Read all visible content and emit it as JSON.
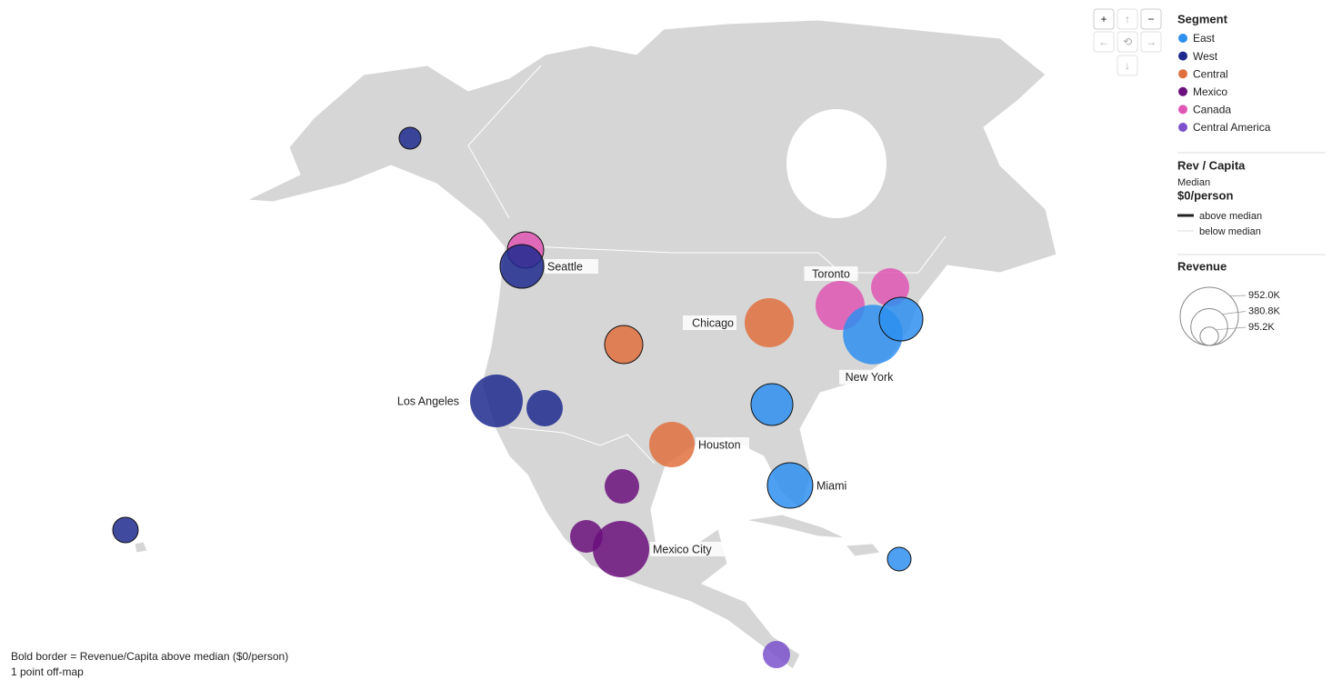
{
  "controls": [
    "+",
    "↑",
    "−",
    "←",
    "⟲",
    "→",
    "↓"
  ],
  "legend": {
    "segment_title": "Segment",
    "segments": [
      {
        "name": "East",
        "color": "#2e8ff0"
      },
      {
        "name": "West",
        "color": "#1f2a8e"
      },
      {
        "name": "Central",
        "color": "#e0703e"
      },
      {
        "name": "Mexico",
        "color": "#6b0f7c"
      },
      {
        "name": "Canada",
        "color": "#e056b4"
      },
      {
        "name": "Central America",
        "color": "#7b52cc"
      }
    ],
    "rev_title": "Rev / Capita",
    "median_label": "Median",
    "median_value": "$0/person",
    "above": "above median",
    "below": "below median",
    "revenue_title": "Revenue",
    "sizes": [
      {
        "value": 952000,
        "label": "952.0K"
      },
      {
        "value": 380800,
        "label": "380.8K"
      },
      {
        "value": 95200,
        "label": "95.2K"
      }
    ]
  },
  "bubbles": [
    {
      "segment": 1,
      "label": null,
      "revenue": 134000,
      "above_median": true
    },
    {
      "segment": 4,
      "label": null,
      "revenue": 372000,
      "above_median": true
    },
    {
      "segment": 1,
      "label": "Seattle",
      "revenue": 536000,
      "above_median": true
    },
    {
      "segment": 2,
      "label": null,
      "revenue": 410000,
      "above_median": true
    },
    {
      "segment": 2,
      "label": "Chicago",
      "revenue": 678000,
      "above_median": false
    },
    {
      "segment": 4,
      "label": "Toronto",
      "revenue": 678000,
      "above_median": false
    },
    {
      "segment": 4,
      "label": null,
      "revenue": 410000,
      "above_median": false
    },
    {
      "segment": 0,
      "label": "New York",
      "revenue": 1000000,
      "above_median": false
    },
    {
      "segment": 0,
      "label": null,
      "revenue": 536000,
      "above_median": true
    },
    {
      "segment": 1,
      "label": "Los Angeles",
      "revenue": 782000,
      "above_median": false
    },
    {
      "segment": 1,
      "label": null,
      "revenue": 372000,
      "above_median": false
    },
    {
      "segment": 0,
      "label": null,
      "revenue": 492000,
      "above_median": true
    },
    {
      "segment": 2,
      "label": "Houston",
      "revenue": 581000,
      "above_median": false
    },
    {
      "segment": 0,
      "label": "Miami",
      "revenue": 581000,
      "above_median": true
    },
    {
      "segment": 3,
      "label": null,
      "revenue": 336000,
      "above_median": false
    },
    {
      "segment": 3,
      "label": null,
      "revenue": 301000,
      "above_median": false
    },
    {
      "segment": 3,
      "label": "Mexico City",
      "revenue": 893000,
      "above_median": false
    },
    {
      "segment": 1,
      "label": null,
      "revenue": 182000,
      "above_median": true
    },
    {
      "segment": 0,
      "label": null,
      "revenue": 157000,
      "above_median": true
    },
    {
      "segment": 5,
      "label": null,
      "revenue": 209000,
      "above_median": false
    }
  ],
  "footer": [
    "Bold border = Revenue/Capita above median ($0/person)",
    "1 point off-map"
  ]
}
